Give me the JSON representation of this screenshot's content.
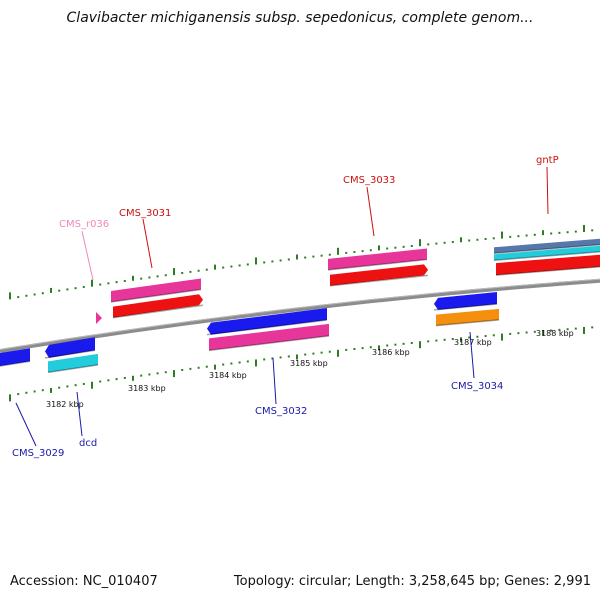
{
  "title": "Clavibacter michiganensis subsp. sepedonicus, complete genom...",
  "footer": {
    "accession": "Accession: NC_010407",
    "summary": "Topology: circular; Length: 3,258,645 bp; Genes: 2,991"
  },
  "colors": {
    "backbone": "#8c8c8c",
    "tick": "#2f7d22",
    "forward_label": "#cc1111",
    "reverse_label": "#1a1aaa",
    "rna_label": "#ee88bb",
    "gene_red": "#ee1111",
    "gene_pink": "#e8359a",
    "gene_blue": "#1a1aee",
    "gene_cyan": "#22ccdd",
    "gene_orange": "#f5900f",
    "gene_steel": "#5577aa"
  },
  "scale": {
    "labels": [
      "3182 kbp",
      "3183 kbp",
      "3184 kbp",
      "3185 kbp",
      "3186 kbp",
      "3187 kbp",
      "3188 kbp"
    ]
  },
  "gene_labels": [
    {
      "id": "cms-r036",
      "text": "CMS_r036",
      "strand": "rna"
    },
    {
      "id": "cms-3031",
      "text": "CMS_3031",
      "strand": "forward"
    },
    {
      "id": "cms-3033",
      "text": "CMS_3033",
      "strand": "forward"
    },
    {
      "id": "gntp",
      "text": "gntP",
      "strand": "forward"
    },
    {
      "id": "cms-3029",
      "text": "CMS_3029",
      "strand": "reverse"
    },
    {
      "id": "dcd",
      "text": "dcd",
      "strand": "reverse"
    },
    {
      "id": "cms-3032",
      "text": "CMS_3032",
      "strand": "reverse"
    },
    {
      "id": "cms-3034",
      "text": "CMS_3034",
      "strand": "reverse"
    }
  ]
}
